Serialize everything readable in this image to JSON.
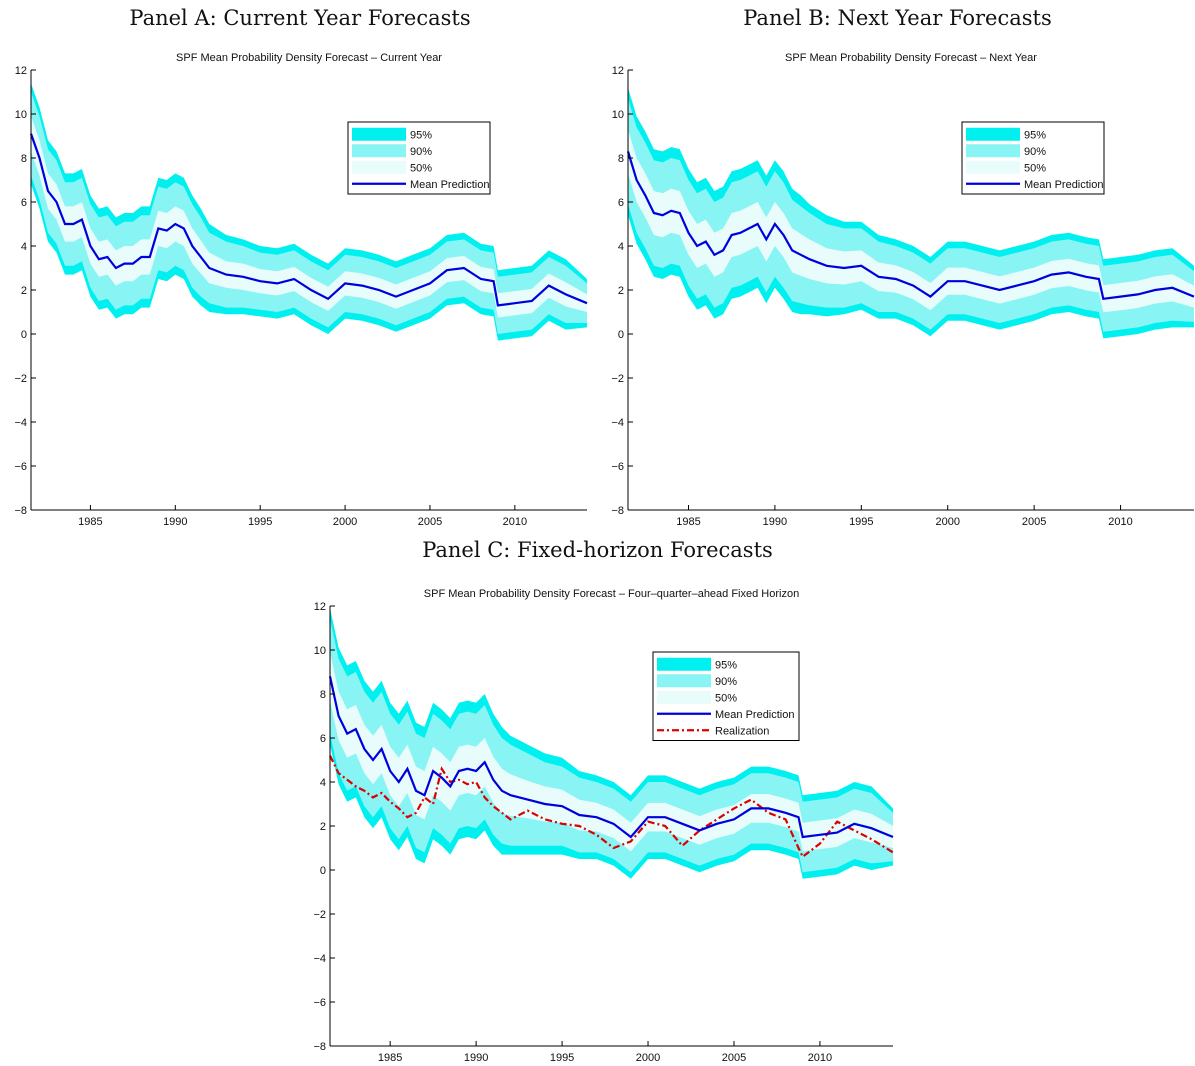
{
  "panels": [
    {
      "title": "Panel A: Current Year Forecasts"
    },
    {
      "title": "Panel B: Next Year Forecasts"
    },
    {
      "title": "Panel C: Fixed-horizon Forecasts"
    }
  ],
  "chart_data": [
    {
      "type": "area",
      "title": "SPF Mean Probability Density Forecast – Current Year",
      "xlim": [
        1981.5,
        2014.25
      ],
      "ylim": [
        -8,
        12
      ],
      "xticks": [
        1985,
        1990,
        1995,
        2000,
        2005,
        2010
      ],
      "yticks": [
        -8,
        -6,
        -4,
        -2,
        0,
        2,
        4,
        6,
        8,
        10,
        12
      ],
      "legend_position": "top-right",
      "colors": {
        "band95": "#00f0f0",
        "band90": "#88f4f4",
        "band50": "#e8fcfc",
        "mean": "#0000dd"
      },
      "legend": [
        "95%",
        "90%",
        "50%",
        "Mean Prediction"
      ],
      "x": [
        1981.5,
        1982,
        1982.5,
        1983,
        1983.5,
        1984,
        1984.5,
        1985,
        1985.5,
        1986,
        1986.5,
        1987,
        1987.5,
        1988,
        1988.5,
        1989,
        1989.5,
        1990,
        1990.5,
        1991,
        1991.5,
        1992,
        1993,
        1994,
        1995,
        1996,
        1997,
        1998,
        1999,
        2000,
        2001,
        2002,
        2003,
        2004,
        2005,
        2006,
        2007,
        2008,
        2008.75,
        2009,
        2010,
        2011,
        2012,
        2013,
        2014.25
      ],
      "mean": [
        9.1,
        8.0,
        6.5,
        6.0,
        5.0,
        5.0,
        5.2,
        4.0,
        3.4,
        3.5,
        3.0,
        3.2,
        3.2,
        3.5,
        3.5,
        4.8,
        4.7,
        5.0,
        4.8,
        4.0,
        3.5,
        3.0,
        2.7,
        2.6,
        2.4,
        2.3,
        2.5,
        2.0,
        1.6,
        2.3,
        2.2,
        2.0,
        1.7,
        2.0,
        2.3,
        2.9,
        3.0,
        2.5,
        2.4,
        1.3,
        1.4,
        1.5,
        2.2,
        1.8,
        1.4
      ],
      "half95": [
        2.3,
        2.3,
        2.3,
        2.3,
        2.3,
        2.3,
        2.3,
        2.3,
        2.3,
        2.3,
        2.3,
        2.3,
        2.3,
        2.3,
        2.3,
        2.3,
        2.3,
        2.3,
        2.3,
        2.3,
        2.2,
        2.0,
        1.8,
        1.7,
        1.6,
        1.6,
        1.6,
        1.6,
        1.6,
        1.6,
        1.6,
        1.6,
        1.6,
        1.6,
        1.6,
        1.6,
        1.6,
        1.6,
        1.6,
        1.6,
        1.6,
        1.6,
        1.6,
        1.6,
        1.1
      ],
      "half90": [
        1.9,
        1.9,
        1.9,
        1.9,
        1.9,
        1.9,
        1.9,
        1.9,
        1.9,
        1.9,
        1.9,
        1.9,
        1.9,
        1.9,
        1.9,
        1.9,
        1.9,
        1.9,
        1.9,
        1.9,
        1.8,
        1.6,
        1.5,
        1.4,
        1.3,
        1.3,
        1.3,
        1.3,
        1.3,
        1.3,
        1.3,
        1.3,
        1.3,
        1.3,
        1.3,
        1.3,
        1.3,
        1.3,
        1.3,
        1.3,
        1.3,
        1.3,
        1.3,
        1.3,
        0.9
      ],
      "half50": [
        0.8,
        0.8,
        0.8,
        0.8,
        0.8,
        0.8,
        0.8,
        0.8,
        0.8,
        0.8,
        0.8,
        0.8,
        0.8,
        0.8,
        0.8,
        0.8,
        0.8,
        0.8,
        0.8,
        0.8,
        0.75,
        0.7,
        0.6,
        0.6,
        0.55,
        0.55,
        0.55,
        0.55,
        0.55,
        0.55,
        0.55,
        0.55,
        0.55,
        0.55,
        0.55,
        0.55,
        0.55,
        0.55,
        0.55,
        0.55,
        0.55,
        0.55,
        0.55,
        0.55,
        0.4
      ]
    },
    {
      "type": "area",
      "title": "SPF Mean Probability Density Forecast – Next Year",
      "xlim": [
        1981.5,
        2014.25
      ],
      "ylim": [
        -8,
        12
      ],
      "xticks": [
        1985,
        1990,
        1995,
        2000,
        2005,
        2010
      ],
      "yticks": [
        -8,
        -6,
        -4,
        -2,
        0,
        2,
        4,
        6,
        8,
        10,
        12
      ],
      "legend_position": "top-right",
      "colors": {
        "band95": "#00f0f0",
        "band90": "#88f4f4",
        "band50": "#e8fcfc",
        "mean": "#0000dd"
      },
      "legend": [
        "95%",
        "90%",
        "50%",
        "Mean Prediction"
      ],
      "x": [
        1981.5,
        1982,
        1982.5,
        1983,
        1983.5,
        1984,
        1984.5,
        1985,
        1985.5,
        1986,
        1986.5,
        1987,
        1987.5,
        1988,
        1988.5,
        1989,
        1989.5,
        1990,
        1990.5,
        1991,
        1991.5,
        1992,
        1993,
        1994,
        1995,
        1996,
        1997,
        1998,
        1999,
        2000,
        2001,
        2002,
        2003,
        2004,
        2005,
        2006,
        2007,
        2008,
        2008.75,
        2009,
        2010,
        2011,
        2012,
        2013,
        2014.25
      ],
      "mean": [
        8.3,
        7.0,
        6.3,
        5.5,
        5.4,
        5.6,
        5.5,
        4.6,
        4.0,
        4.2,
        3.6,
        3.8,
        4.5,
        4.6,
        4.8,
        5.0,
        4.3,
        5.0,
        4.5,
        3.8,
        3.6,
        3.4,
        3.1,
        3.0,
        3.1,
        2.6,
        2.5,
        2.2,
        1.7,
        2.4,
        2.4,
        2.2,
        2.0,
        2.2,
        2.4,
        2.7,
        2.8,
        2.6,
        2.5,
        1.6,
        1.7,
        1.8,
        2.0,
        2.1,
        1.7
      ],
      "half95": [
        2.9,
        2.9,
        2.9,
        2.9,
        2.9,
        2.9,
        2.9,
        2.9,
        2.9,
        2.9,
        2.9,
        2.9,
        2.9,
        2.9,
        2.9,
        2.9,
        2.9,
        2.9,
        2.9,
        2.8,
        2.7,
        2.5,
        2.3,
        2.1,
        2.0,
        1.9,
        1.8,
        1.8,
        1.8,
        1.8,
        1.8,
        1.8,
        1.8,
        1.8,
        1.8,
        1.8,
        1.8,
        1.8,
        1.8,
        1.8,
        1.8,
        1.8,
        1.8,
        1.8,
        1.4
      ],
      "half90": [
        2.4,
        2.4,
        2.4,
        2.4,
        2.4,
        2.4,
        2.4,
        2.4,
        2.4,
        2.4,
        2.4,
        2.4,
        2.4,
        2.4,
        2.4,
        2.4,
        2.4,
        2.4,
        2.4,
        2.3,
        2.2,
        2.1,
        1.9,
        1.8,
        1.7,
        1.6,
        1.5,
        1.5,
        1.5,
        1.5,
        1.5,
        1.5,
        1.5,
        1.5,
        1.5,
        1.5,
        1.5,
        1.5,
        1.5,
        1.5,
        1.5,
        1.5,
        1.5,
        1.5,
        1.15
      ],
      "half50": [
        1.0,
        1.0,
        1.0,
        1.0,
        1.0,
        1.0,
        1.0,
        1.0,
        1.0,
        1.0,
        1.0,
        1.0,
        1.0,
        1.0,
        1.0,
        1.0,
        1.0,
        1.0,
        1.0,
        1.0,
        0.95,
        0.9,
        0.8,
        0.75,
        0.7,
        0.65,
        0.62,
        0.62,
        0.62,
        0.62,
        0.62,
        0.62,
        0.62,
        0.62,
        0.62,
        0.62,
        0.62,
        0.62,
        0.62,
        0.62,
        0.62,
        0.62,
        0.62,
        0.62,
        0.5
      ]
    },
    {
      "type": "area",
      "title": "SPF Mean Probability Density Forecast – Four–quarter–ahead Fixed Horizon",
      "xlim": [
        1981.5,
        2014.25
      ],
      "ylim": [
        -8,
        12
      ],
      "xticks": [
        1985,
        1990,
        1995,
        2000,
        2005,
        2010
      ],
      "yticks": [
        -8,
        -6,
        -4,
        -2,
        0,
        2,
        4,
        6,
        8,
        10,
        12
      ],
      "legend_position": "top-right",
      "colors": {
        "band95": "#00f0f0",
        "band90": "#88f4f4",
        "band50": "#e8fcfc",
        "mean": "#0000dd",
        "realization": "#dd0000"
      },
      "legend": [
        "95%",
        "90%",
        "50%",
        "Mean Prediction",
        "Realization"
      ],
      "x": [
        1981.5,
        1982,
        1982.5,
        1983,
        1983.5,
        1984,
        1984.5,
        1985,
        1985.5,
        1986,
        1986.5,
        1987,
        1987.5,
        1988,
        1988.5,
        1989,
        1989.5,
        1990,
        1990.5,
        1991,
        1991.5,
        1992,
        1993,
        1994,
        1995,
        1996,
        1997,
        1998,
        1999,
        2000,
        2001,
        2002,
        2003,
        2004,
        2005,
        2006,
        2007,
        2008,
        2008.75,
        2009,
        2010,
        2011,
        2012,
        2013,
        2014.25
      ],
      "mean": [
        8.8,
        7.0,
        6.2,
        6.4,
        5.5,
        5.0,
        5.5,
        4.5,
        4.0,
        4.6,
        3.6,
        3.4,
        4.5,
        4.2,
        3.8,
        4.5,
        4.6,
        4.5,
        4.9,
        4.1,
        3.6,
        3.4,
        3.2,
        3.0,
        2.9,
        2.5,
        2.4,
        2.1,
        1.5,
        2.4,
        2.4,
        2.1,
        1.8,
        2.1,
        2.3,
        2.8,
        2.8,
        2.6,
        2.4,
        1.5,
        1.6,
        1.7,
        2.1,
        1.9,
        1.5
      ],
      "realization": [
        5.2,
        4.4,
        4.1,
        3.8,
        3.6,
        3.3,
        3.5,
        3.1,
        2.8,
        2.4,
        2.6,
        3.3,
        3.0,
        4.6,
        4.0,
        4.1,
        3.9,
        4.0,
        3.3,
        2.9,
        2.6,
        2.3,
        2.7,
        2.3,
        2.1,
        2.0,
        1.6,
        1.0,
        1.3,
        2.2,
        2.0,
        1.1,
        1.8,
        2.3,
        2.8,
        3.2,
        2.6,
        2.3,
        1.0,
        0.6,
        1.2,
        2.2,
        1.8,
        1.4,
        0.8
      ],
      "half95": [
        3.1,
        3.1,
        3.1,
        3.1,
        3.1,
        3.1,
        3.1,
        3.1,
        3.1,
        3.1,
        3.1,
        3.1,
        3.1,
        3.1,
        3.1,
        3.1,
        3.1,
        3.1,
        3.1,
        3.0,
        2.9,
        2.7,
        2.5,
        2.3,
        2.2,
        2.0,
        1.9,
        1.9,
        1.9,
        1.9,
        1.9,
        1.9,
        1.9,
        1.9,
        1.9,
        1.9,
        1.9,
        1.9,
        1.9,
        1.9,
        1.9,
        1.9,
        1.9,
        1.9,
        1.3
      ],
      "half90": [
        2.6,
        2.6,
        2.6,
        2.6,
        2.6,
        2.6,
        2.6,
        2.6,
        2.6,
        2.6,
        2.6,
        2.6,
        2.6,
        2.6,
        2.6,
        2.6,
        2.6,
        2.6,
        2.6,
        2.5,
        2.4,
        2.3,
        2.1,
        1.9,
        1.8,
        1.7,
        1.6,
        1.6,
        1.6,
        1.6,
        1.6,
        1.6,
        1.6,
        1.6,
        1.6,
        1.6,
        1.6,
        1.6,
        1.6,
        1.6,
        1.6,
        1.6,
        1.6,
        1.6,
        1.1
      ],
      "half50": [
        1.1,
        1.1,
        1.1,
        1.1,
        1.1,
        1.1,
        1.1,
        1.1,
        1.1,
        1.1,
        1.1,
        1.1,
        1.1,
        1.1,
        1.1,
        1.1,
        1.1,
        1.1,
        1.1,
        1.05,
        1.0,
        0.95,
        0.85,
        0.8,
        0.75,
        0.7,
        0.65,
        0.65,
        0.65,
        0.65,
        0.65,
        0.65,
        0.65,
        0.65,
        0.65,
        0.65,
        0.65,
        0.65,
        0.65,
        0.65,
        0.65,
        0.65,
        0.65,
        0.65,
        0.5
      ]
    }
  ]
}
